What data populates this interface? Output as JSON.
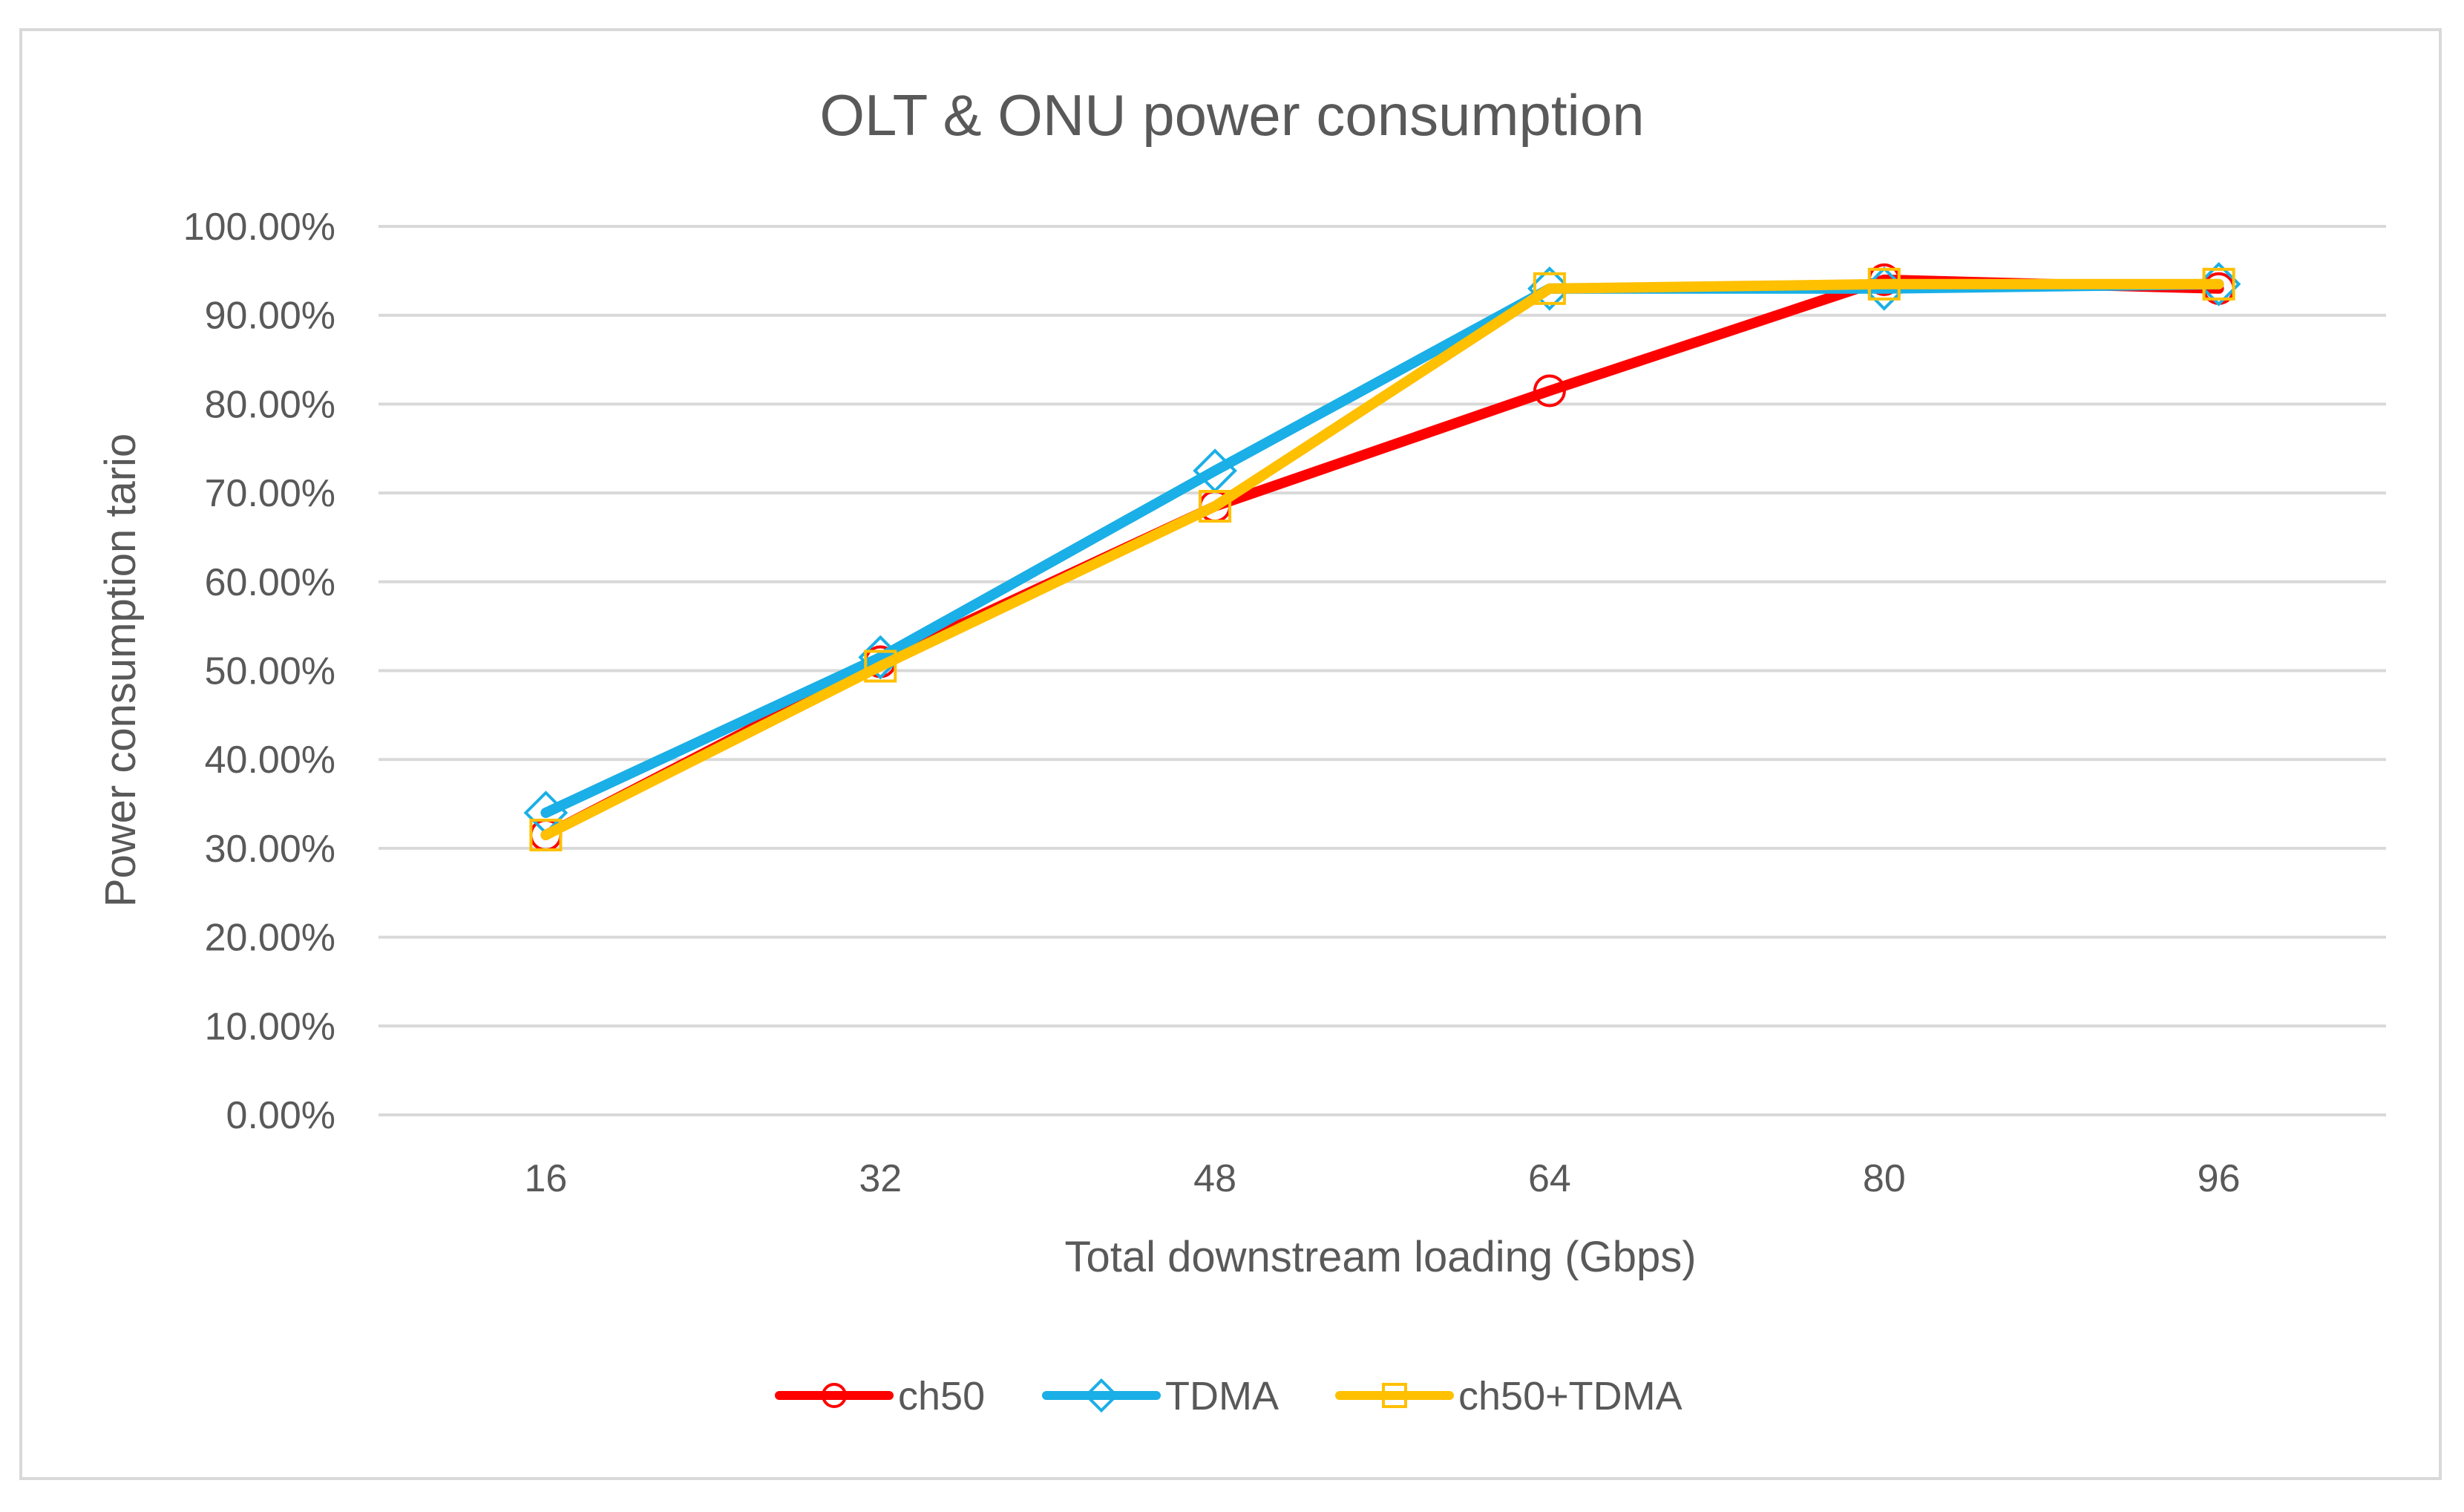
{
  "chart_data": {
    "type": "line",
    "title": "OLT & ONU power consumption",
    "xlabel": "Total downstream loading (Gbps)",
    "ylabel": "Power consumption tario",
    "categories": [
      "16",
      "32",
      "48",
      "64",
      "80",
      "96"
    ],
    "y_ticks": [
      "0.00%",
      "10.00%",
      "20.00%",
      "30.00%",
      "40.00%",
      "50.00%",
      "60.00%",
      "70.00%",
      "80.00%",
      "90.00%",
      "100.00%"
    ],
    "ylim": [
      0,
      100
    ],
    "grid": true,
    "legend_position": "bottom",
    "series": [
      {
        "name": "ch50",
        "color": "#ff0000",
        "marker": "circle",
        "values": [
          31.5,
          51,
          68.5,
          81.5,
          94,
          93
        ]
      },
      {
        "name": "TDMA",
        "color": "#1aafe6",
        "marker": "diamond",
        "values": [
          34,
          51.5,
          72.5,
          93,
          93,
          93.5
        ]
      },
      {
        "name": "ch50+TDMA",
        "color": "#ffc000",
        "marker": "square",
        "values": [
          31.5,
          50.5,
          68.5,
          93,
          93.5,
          93.5
        ]
      }
    ]
  }
}
